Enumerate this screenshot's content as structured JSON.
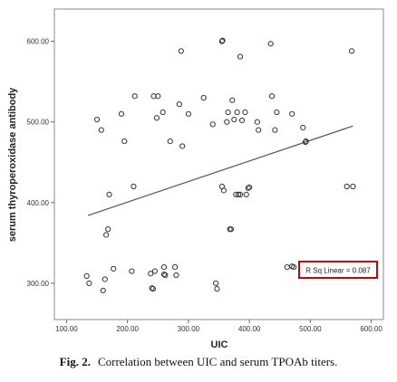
{
  "caption": {
    "prefix": "Fig.  2.",
    "text": "Correlation between UIC and serum TPOAb titers."
  },
  "chart_data": {
    "type": "scatter",
    "xlabel": "UIC",
    "ylabel": "serum thyroperoxidase antibody",
    "xlim": [
      80,
      620
    ],
    "ylim": [
      255,
      640
    ],
    "x_ticks": [
      "100.00",
      "200.00",
      "300.00",
      "400.00",
      "500.00",
      "600.00"
    ],
    "y_ticks": [
      "300.00",
      "400.00",
      "500.00",
      "600.00"
    ],
    "grid": false,
    "annotation": "R Sq Linear = 0.087",
    "colors": {
      "points": "#333333",
      "fit_line": "#555555",
      "annotation_border": "#cc0000"
    },
    "fit_line": {
      "x": [
        135,
        570
      ],
      "y": [
        384,
        495
      ]
    },
    "points": [
      {
        "x": 133,
        "y": 309
      },
      {
        "x": 137,
        "y": 300
      },
      {
        "x": 150,
        "y": 503
      },
      {
        "x": 157,
        "y": 490
      },
      {
        "x": 160,
        "y": 291
      },
      {
        "x": 163,
        "y": 305
      },
      {
        "x": 165,
        "y": 360
      },
      {
        "x": 168,
        "y": 367
      },
      {
        "x": 170,
        "y": 410
      },
      {
        "x": 177,
        "y": 318
      },
      {
        "x": 190,
        "y": 510
      },
      {
        "x": 195,
        "y": 476
      },
      {
        "x": 210,
        "y": 420
      },
      {
        "x": 212,
        "y": 532
      },
      {
        "x": 207,
        "y": 315
      },
      {
        "x": 240,
        "y": 294
      },
      {
        "x": 242,
        "y": 293
      },
      {
        "x": 238,
        "y": 312
      },
      {
        "x": 245,
        "y": 315
      },
      {
        "x": 248,
        "y": 505
      },
      {
        "x": 243,
        "y": 532
      },
      {
        "x": 250,
        "y": 532
      },
      {
        "x": 258,
        "y": 512
      },
      {
        "x": 260,
        "y": 320
      },
      {
        "x": 262,
        "y": 310
      },
      {
        "x": 260,
        "y": 311
      },
      {
        "x": 270,
        "y": 476
      },
      {
        "x": 278,
        "y": 320
      },
      {
        "x": 280,
        "y": 310
      },
      {
        "x": 285,
        "y": 522
      },
      {
        "x": 288,
        "y": 588
      },
      {
        "x": 290,
        "y": 470
      },
      {
        "x": 300,
        "y": 510
      },
      {
        "x": 325,
        "y": 530
      },
      {
        "x": 340,
        "y": 497
      },
      {
        "x": 345,
        "y": 300
      },
      {
        "x": 347,
        "y": 293
      },
      {
        "x": 355,
        "y": 600
      },
      {
        "x": 356,
        "y": 601
      },
      {
        "x": 355,
        "y": 420
      },
      {
        "x": 358,
        "y": 415
      },
      {
        "x": 363,
        "y": 500
      },
      {
        "x": 365,
        "y": 512
      },
      {
        "x": 368,
        "y": 367
      },
      {
        "x": 370,
        "y": 367
      },
      {
        "x": 372,
        "y": 527
      },
      {
        "x": 375,
        "y": 503
      },
      {
        "x": 378,
        "y": 410
      },
      {
        "x": 380,
        "y": 512
      },
      {
        "x": 382,
        "y": 410
      },
      {
        "x": 385,
        "y": 410
      },
      {
        "x": 385,
        "y": 581
      },
      {
        "x": 388,
        "y": 502
      },
      {
        "x": 393,
        "y": 512
      },
      {
        "x": 395,
        "y": 410
      },
      {
        "x": 398,
        "y": 418
      },
      {
        "x": 400,
        "y": 419
      },
      {
        "x": 413,
        "y": 500
      },
      {
        "x": 415,
        "y": 490
      },
      {
        "x": 435,
        "y": 597
      },
      {
        "x": 437,
        "y": 532
      },
      {
        "x": 442,
        "y": 490
      },
      {
        "x": 445,
        "y": 512
      },
      {
        "x": 462,
        "y": 320
      },
      {
        "x": 470,
        "y": 321
      },
      {
        "x": 473,
        "y": 320
      },
      {
        "x": 470,
        "y": 510
      },
      {
        "x": 488,
        "y": 493
      },
      {
        "x": 492,
        "y": 475
      },
      {
        "x": 493,
        "y": 476
      },
      {
        "x": 560,
        "y": 420
      },
      {
        "x": 570,
        "y": 420
      },
      {
        "x": 568,
        "y": 588
      }
    ]
  }
}
